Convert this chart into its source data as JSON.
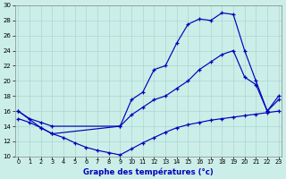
{
  "title": "Graphe des températures (°c)",
  "bg_color": "#cceee8",
  "grid_color": "#a8d8d0",
  "line_color": "#0000bb",
  "ylim": [
    10,
    30
  ],
  "yticks": [
    10,
    12,
    14,
    16,
    18,
    20,
    22,
    24,
    26,
    28,
    30
  ],
  "xticks": [
    0,
    1,
    2,
    3,
    4,
    5,
    6,
    7,
    8,
    9,
    10,
    11,
    12,
    13,
    14,
    15,
    16,
    17,
    18,
    19,
    20,
    21,
    22,
    23
  ],
  "line1_x": [
    0,
    2,
    3,
    9,
    10,
    11,
    12,
    13,
    14,
    15,
    16,
    17,
    18,
    19,
    20,
    21,
    22,
    23
  ],
  "line1_y": [
    16.0,
    13.8,
    13.0,
    14.0,
    17.5,
    18.5,
    21.5,
    22.0,
    25.0,
    27.5,
    28.2,
    28.0,
    29.0,
    28.8,
    24.0,
    20.0,
    16.0,
    17.5
  ],
  "line2_x": [
    0,
    1,
    2,
    3,
    9,
    10,
    11,
    12,
    13,
    14,
    15,
    16,
    17,
    18,
    19,
    20,
    21,
    22,
    23
  ],
  "line2_y": [
    16.0,
    15.0,
    14.5,
    14.0,
    14.0,
    15.5,
    16.5,
    17.5,
    18.0,
    19.0,
    20.0,
    21.5,
    22.5,
    23.5,
    24.0,
    20.5,
    19.5,
    16.0,
    18.0
  ],
  "line3_x": [
    0,
    1,
    2,
    3,
    4,
    5,
    6,
    7,
    8,
    9,
    10,
    11,
    12,
    13,
    14,
    15,
    16,
    17,
    18,
    19,
    20,
    21,
    22,
    23
  ],
  "line3_y": [
    15.0,
    14.5,
    13.8,
    13.0,
    12.5,
    11.8,
    11.2,
    10.8,
    10.5,
    10.2,
    11.0,
    11.8,
    12.5,
    13.2,
    13.8,
    14.2,
    14.5,
    14.8,
    15.0,
    15.2,
    15.4,
    15.6,
    15.8,
    16.0
  ]
}
